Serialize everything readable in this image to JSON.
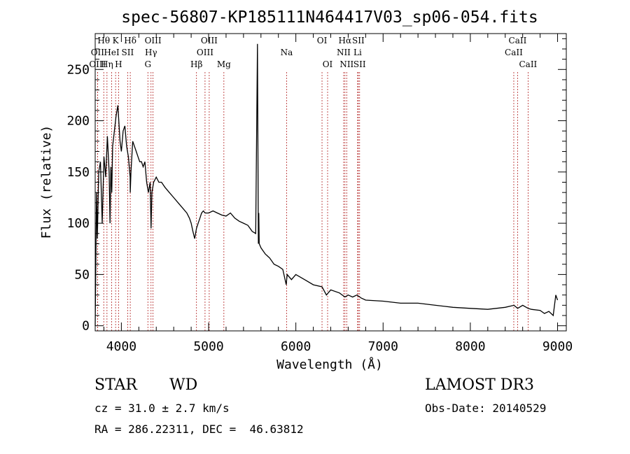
{
  "chart_data": {
    "type": "line",
    "title": "spec-56807-KP185111N464417V03_sp06-054.fits",
    "xlabel": "Wavelength (Å)",
    "ylabel": "Flux (relative)",
    "xlim": [
      3700,
      9100
    ],
    "ylim": [
      -5,
      285
    ],
    "xticks": [
      4000,
      5000,
      6000,
      7000,
      8000,
      9000
    ],
    "yticks": [
      0,
      50,
      100,
      150,
      200,
      250
    ],
    "grid": false,
    "series": [
      {
        "name": "flux",
        "x": [
          3700,
          3715,
          3725,
          3740,
          3760,
          3780,
          3800,
          3820,
          3840,
          3860,
          3870,
          3880,
          3890,
          3900,
          3920,
          3940,
          3960,
          3970,
          3985,
          4000,
          4020,
          4040,
          4060,
          4080,
          4100,
          4102,
          4110,
          4130,
          4150,
          4170,
          4190,
          4210,
          4230,
          4250,
          4270,
          4290,
          4310,
          4330,
          4340,
          4350,
          4370,
          4400,
          4430,
          4460,
          4500,
          4550,
          4600,
          4650,
          4700,
          4750,
          4780,
          4800,
          4820,
          4840,
          4861,
          4880,
          4900,
          4920,
          4940,
          4960,
          5000,
          5050,
          5100,
          5150,
          5200,
          5250,
          5300,
          5350,
          5400,
          5450,
          5500,
          5540,
          5560,
          5570,
          5575,
          5580,
          5600,
          5650,
          5700,
          5750,
          5800,
          5850,
          5890,
          5900,
          5950,
          6000,
          6100,
          6200,
          6300,
          6350,
          6400,
          6500,
          6563,
          6600,
          6650,
          6700,
          6750,
          6800,
          7000,
          7200,
          7400,
          7600,
          7800,
          8000,
          8200,
          8400,
          8500,
          8542,
          8600,
          8662,
          8700,
          8800,
          8850,
          8900,
          8950,
          8980,
          9000
        ],
        "values": [
          0,
          130,
          85,
          150,
          160,
          100,
          165,
          145,
          185,
          150,
          100,
          155,
          130,
          175,
          190,
          205,
          215,
          200,
          180,
          170,
          190,
          195,
          175,
          165,
          145,
          130,
          150,
          180,
          175,
          170,
          165,
          160,
          160,
          155,
          160,
          140,
          130,
          140,
          95,
          130,
          140,
          145,
          140,
          140,
          135,
          130,
          125,
          120,
          115,
          110,
          105,
          100,
          92,
          85,
          95,
          100,
          105,
          110,
          112,
          110,
          110,
          112,
          110,
          108,
          107,
          110,
          105,
          102,
          100,
          98,
          92,
          90,
          275,
          80,
          110,
          80,
          76,
          70,
          66,
          60,
          58,
          55,
          40,
          50,
          45,
          50,
          45,
          40,
          38,
          30,
          35,
          32,
          28,
          30,
          28,
          30,
          27,
          25,
          24,
          22,
          22,
          20,
          18,
          17,
          16,
          18,
          20,
          17,
          20,
          17,
          16,
          15,
          12,
          14,
          10,
          30,
          25
        ]
      }
    ],
    "line_markers": [
      {
        "label": "Hθ",
        "wl": 3798,
        "row": 0
      },
      {
        "label": "OII",
        "wl": 3727,
        "row": 1
      },
      {
        "label": "OIII",
        "wl": 3727,
        "row": 2
      },
      {
        "label": "K",
        "wl": 3934,
        "row": 0
      },
      {
        "label": "HeI",
        "wl": 3889,
        "row": 1
      },
      {
        "label": "Hη",
        "wl": 3835,
        "row": 2
      },
      {
        "label": "SII",
        "wl": 4072,
        "row": 1
      },
      {
        "label": "H",
        "wl": 3968,
        "row": 2
      },
      {
        "label": "Hδ",
        "wl": 4102,
        "row": 0
      },
      {
        "label": "OIII",
        "wl": 4363,
        "row": 0
      },
      {
        "label": "Hγ",
        "wl": 4340,
        "row": 1
      },
      {
        "label": "G",
        "wl": 4304,
        "row": 2
      },
      {
        "label": "OIII",
        "wl": 5007,
        "row": 0
      },
      {
        "label": "OIII",
        "wl": 4959,
        "row": 1
      },
      {
        "label": "Hβ",
        "wl": 4861,
        "row": 2
      },
      {
        "label": "Mg",
        "wl": 5175,
        "row": 2
      },
      {
        "label": "Na",
        "wl": 5894,
        "row": 1
      },
      {
        "label": "OI",
        "wl": 6300,
        "row": 0
      },
      {
        "label": "OI",
        "wl": 6364,
        "row": 2
      },
      {
        "label": "Hα",
        "wl": 6563,
        "row": 0
      },
      {
        "label": "NII",
        "wl": 6548,
        "row": 1
      },
      {
        "label": "NII",
        "wl": 6583,
        "row": 2
      },
      {
        "label": "SII",
        "wl": 6716,
        "row": 0
      },
      {
        "label": "Li",
        "wl": 6708,
        "row": 1
      },
      {
        "label": "SII",
        "wl": 6731,
        "row": 2
      },
      {
        "label": "CaII",
        "wl": 8542,
        "row": 0
      },
      {
        "label": "CaII",
        "wl": 8498,
        "row": 1
      },
      {
        "label": "CaII",
        "wl": 8662,
        "row": 2
      }
    ]
  },
  "info": {
    "class": "STAR",
    "subclass": "WD",
    "survey": "LAMOST DR3",
    "cz": "cz = 31.0 ± 2.7 km/s",
    "obs_date": "Obs-Date: 20140529",
    "coords": "RA = 286.22311, DEC =  46.63812"
  }
}
